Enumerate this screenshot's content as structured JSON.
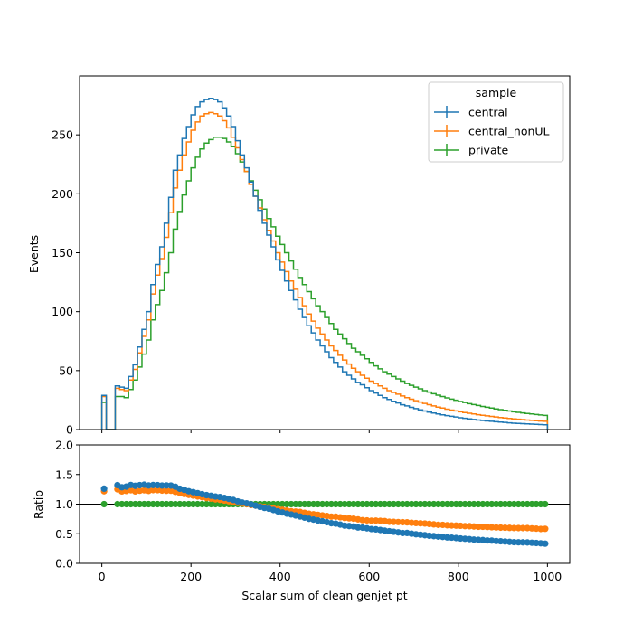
{
  "chart_data": {
    "type": "histogram",
    "xlabel": "Scalar sum of clean genjet pt",
    "legend": {
      "title": "sample",
      "placement": "top-right"
    },
    "top_panel": {
      "ylabel": "Events",
      "ylim": [
        0,
        300
      ],
      "xlim": [
        -50,
        1050
      ],
      "yticks": [
        "0",
        "50",
        "100",
        "150",
        "200",
        "250"
      ],
      "ytick_values": [
        0,
        50,
        100,
        150,
        200,
        250
      ]
    },
    "ratio_panel": {
      "ylabel": "Ratio",
      "ylim": [
        0.0,
        2.0
      ],
      "yticks": [
        "0.0",
        "0.5",
        "1.0",
        "1.5",
        "2.0"
      ],
      "ytick_values": [
        0.0,
        0.5,
        1.0,
        1.5,
        2.0
      ],
      "reference_line": 1.0
    },
    "xticks": [
      "0",
      "200",
      "400",
      "600",
      "800",
      "1000"
    ],
    "xtick_values": [
      0,
      200,
      400,
      600,
      800,
      1000
    ],
    "bin_edges": [
      0,
      10,
      20,
      30,
      40,
      50,
      60,
      70,
      80,
      90,
      100,
      110,
      120,
      130,
      140,
      150,
      160,
      170,
      180,
      190,
      200,
      210,
      220,
      230,
      240,
      250,
      260,
      270,
      280,
      290,
      300,
      310,
      320,
      330,
      340,
      350,
      360,
      370,
      380,
      390,
      400,
      410,
      420,
      430,
      440,
      450,
      460,
      470,
      480,
      490,
      500,
      510,
      520,
      530,
      540,
      550,
      560,
      570,
      580,
      590,
      600,
      610,
      620,
      630,
      640,
      650,
      660,
      670,
      680,
      690,
      700,
      710,
      720,
      730,
      740,
      750,
      760,
      770,
      780,
      790,
      800,
      810,
      820,
      830,
      840,
      850,
      860,
      870,
      880,
      890,
      900,
      910,
      920,
      930,
      940,
      950,
      960,
      970,
      980,
      990,
      1000
    ],
    "series": [
      {
        "name": "central",
        "color": "#1f77b4",
        "values": [
          29,
          0,
          0,
          37,
          36,
          35,
          45,
          55,
          70,
          85,
          100,
          123,
          140,
          155,
          175,
          197,
          220,
          233,
          247,
          257,
          267,
          274,
          278,
          280,
          281,
          280,
          278,
          273,
          266,
          257,
          245,
          233,
          222,
          210,
          198,
          186,
          175,
          165,
          155,
          144,
          135,
          126,
          118,
          110,
          102,
          95,
          88,
          82,
          76,
          71,
          66,
          61,
          57,
          53,
          49,
          46,
          43,
          40,
          38,
          35.5,
          33,
          31,
          29,
          27,
          25.5,
          24,
          22.5,
          21,
          20,
          18.8,
          17.7,
          16.7,
          15.7,
          14.8,
          14,
          13.2,
          12.5,
          11.8,
          11.2,
          10.6,
          10,
          9.5,
          9,
          8.5,
          8.1,
          7.7,
          7.3,
          7,
          6.6,
          6.3,
          6,
          5.7,
          5.4,
          5.2,
          5,
          4.8,
          4.6,
          4.4,
          4.2,
          4
        ]
      },
      {
        "name": "central_nonUL",
        "color": "#ff7f0e",
        "values": [
          28,
          0,
          0,
          35,
          34,
          33,
          42,
          51,
          65,
          79,
          93,
          115,
          131,
          145,
          163,
          184,
          205,
          220,
          233,
          244,
          254,
          261,
          266,
          268,
          269,
          268,
          266,
          262,
          256,
          248,
          239,
          229,
          219,
          208,
          198,
          188,
          178,
          169,
          160,
          150,
          142,
          134,
          126,
          119,
          112,
          105,
          98,
          92,
          86,
          81,
          76,
          71,
          67,
          63,
          59,
          55.5,
          52,
          49,
          46,
          43.5,
          41,
          39,
          37,
          35,
          33,
          31.5,
          30,
          28.5,
          27,
          25.7,
          24.5,
          23.3,
          22.2,
          21.1,
          20,
          19,
          18.2,
          17.3,
          16.5,
          15.8,
          15.1,
          14.4,
          13.8,
          13.2,
          12.6,
          12.1,
          11.6,
          11.1,
          10.6,
          10.2,
          9.8,
          9.4,
          9,
          8.7,
          8.4,
          8.1,
          7.8,
          7.5,
          7.2,
          7
        ]
      },
      {
        "name": "private",
        "color": "#2ca02c",
        "values": [
          23,
          0,
          0,
          28,
          28,
          27,
          34,
          42,
          53,
          64,
          76,
          93,
          106,
          118,
          133,
          150,
          170,
          185,
          199,
          211,
          222,
          231,
          238,
          243,
          246,
          248,
          248,
          247,
          244,
          240,
          234,
          227,
          219,
          211,
          203,
          195,
          187,
          179,
          172,
          164,
          157,
          150,
          143,
          136,
          129,
          123,
          117,
          111,
          105,
          100,
          95,
          90,
          85,
          81,
          77,
          73,
          69,
          66,
          63,
          60,
          57,
          54,
          51.5,
          49,
          47,
          45,
          43,
          41,
          39,
          37.5,
          36,
          34.5,
          33,
          31.7,
          30.4,
          29.2,
          28,
          26.9,
          25.8,
          24.8,
          23.8,
          22.9,
          22,
          21.2,
          20.4,
          19.6,
          18.9,
          18.2,
          17.5,
          16.9,
          16.3,
          15.7,
          15.1,
          14.6,
          14.1,
          13.6,
          13.2,
          12.8,
          12.4,
          12
        ]
      }
    ]
  }
}
